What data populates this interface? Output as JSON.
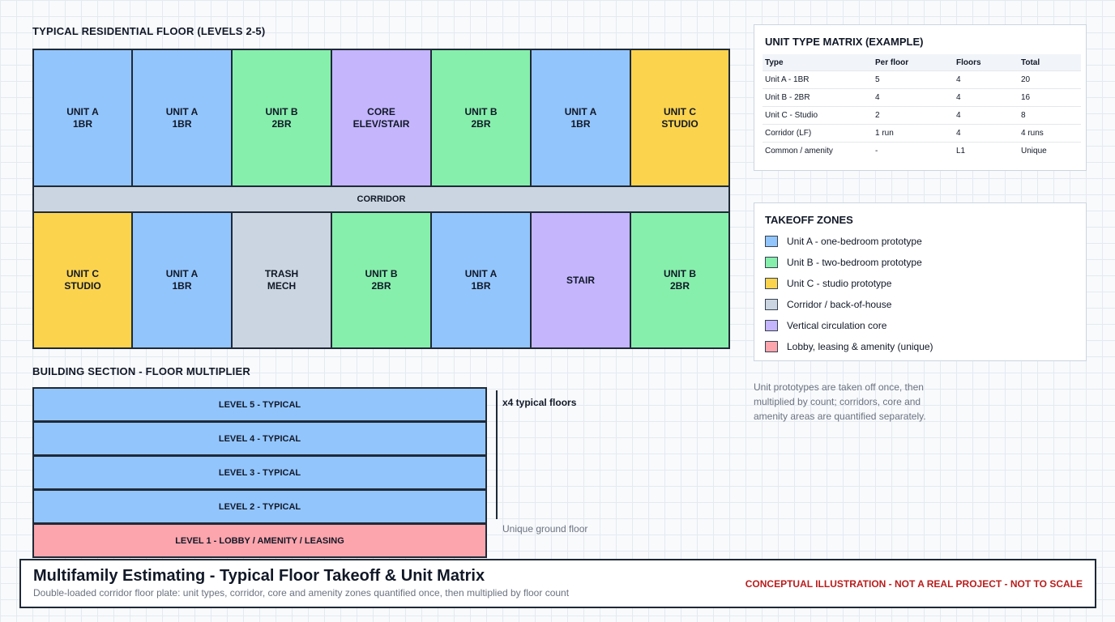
{
  "floor_plan": {
    "title": "TYPICAL RESIDENTIAL FLOOR (LEVELS 2-5)",
    "top_row": [
      {
        "label": "UNIT A\n1BR",
        "color": "#93c5fd"
      },
      {
        "label": "UNIT A\n1BR",
        "color": "#93c5fd"
      },
      {
        "label": "UNIT B\n2BR",
        "color": "#86efac"
      },
      {
        "label": "CORE\nELEV/STAIR",
        "color": "#c4b5fd"
      },
      {
        "label": "UNIT B\n2BR",
        "color": "#86efac"
      },
      {
        "label": "UNIT A\n1BR",
        "color": "#93c5fd"
      },
      {
        "label": "UNIT C\nSTUDIO",
        "color": "#fcd34d"
      }
    ],
    "corridor": "CORRIDOR",
    "bottom_row": [
      {
        "label": "UNIT C\nSTUDIO",
        "color": "#fcd34d"
      },
      {
        "label": "UNIT A\n1BR",
        "color": "#93c5fd"
      },
      {
        "label": "TRASH\nMECH",
        "color": "#cbd5e1"
      },
      {
        "label": "UNIT B\n2BR",
        "color": "#86efac"
      },
      {
        "label": "UNIT A\n1BR",
        "color": "#93c5fd"
      },
      {
        "label": "STAIR",
        "color": "#c4b5fd"
      },
      {
        "label": "UNIT B\n2BR",
        "color": "#86efac"
      }
    ]
  },
  "section": {
    "title": "BUILDING SECTION - FLOOR MULTIPLIER",
    "levels": [
      "LEVEL 5 - TYPICAL",
      "LEVEL 4 - TYPICAL",
      "LEVEL 3 - TYPICAL",
      "LEVEL 2 - TYPICAL",
      "LEVEL 1 - LOBBY / AMENITY / LEASING"
    ],
    "multiplier_label": "x4 typical floors",
    "ground_note": "Unique ground floor"
  },
  "matrix": {
    "title": "UNIT TYPE MATRIX (EXAMPLE)",
    "headers": [
      "Type",
      "Per floor",
      "Floors",
      "Total"
    ],
    "rows": [
      [
        "Unit A - 1BR",
        "5",
        "4",
        "20"
      ],
      [
        "Unit B - 2BR",
        "4",
        "4",
        "16"
      ],
      [
        "Unit C - Studio",
        "2",
        "4",
        "8"
      ],
      [
        "Corridor (LF)",
        "1 run",
        "4",
        "4 runs"
      ],
      [
        "Common / amenity",
        "-",
        "L1",
        "Unique"
      ]
    ]
  },
  "zones": {
    "title": "TAKEOFF ZONES",
    "items": [
      {
        "label": "Unit A - one-bedroom prototype",
        "color": "#93c5fd"
      },
      {
        "label": "Unit B - two-bedroom prototype",
        "color": "#86efac"
      },
      {
        "label": "Unit C - studio prototype",
        "color": "#fcd34d"
      },
      {
        "label": "Corridor / back-of-house",
        "color": "#cbd5e1"
      },
      {
        "label": "Vertical circulation core",
        "color": "#c4b5fd"
      },
      {
        "label": "Lobby, leasing & amenity (unique)",
        "color": "#fca5ad"
      }
    ]
  },
  "note": "Unit prototypes are taken off once, then multiplied by count; corridors, core and amenity areas are quantified separately.",
  "footer": {
    "title": "Multifamily Estimating - Typical Floor Takeoff & Unit Matrix",
    "subtitle": "Double-loaded corridor floor plate: unit types, corridor, core and amenity zones quantified once, then multiplied by floor count",
    "disclaimer": "CONCEPTUAL ILLUSTRATION - NOT A REAL PROJECT - NOT TO SCALE"
  }
}
